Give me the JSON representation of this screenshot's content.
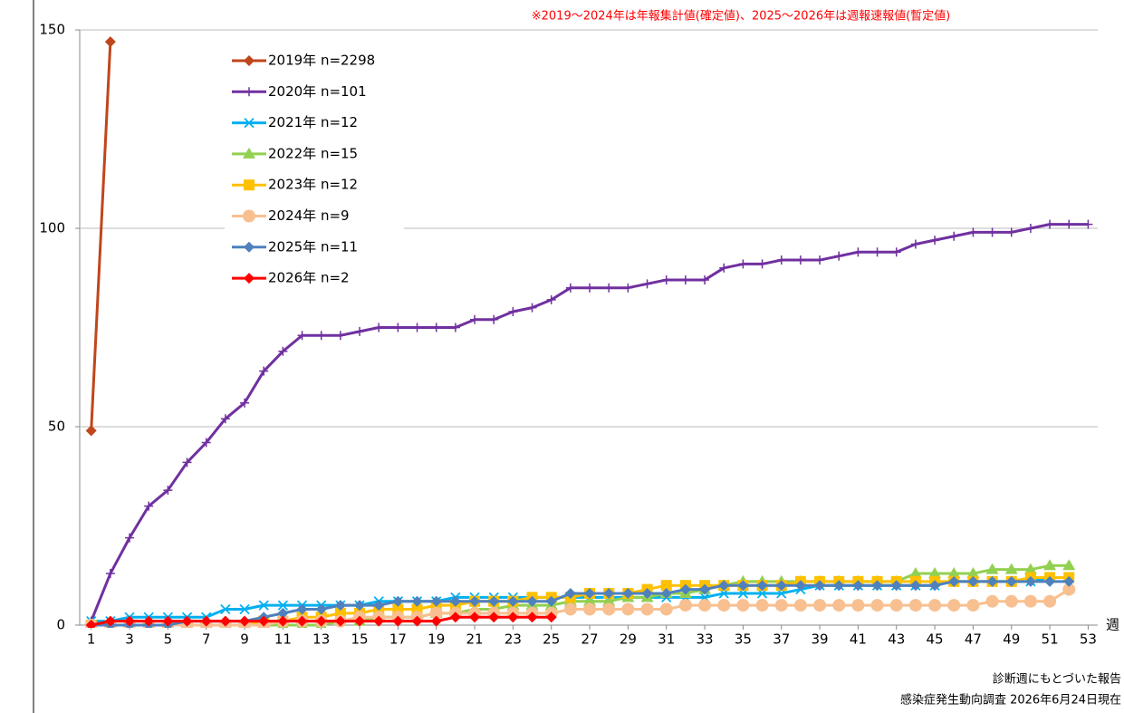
{
  "chart_data": {
    "type": "line",
    "annotation": "※2019～2024年は年報集計値(確定値)、2025～2026年は週報速報値(暫定値)",
    "x_unit": "週",
    "footer": [
      "診断週にもとづいた報告",
      "感染症発生動向調査 2026年6月24日現在"
    ],
    "x": [
      1,
      2,
      3,
      4,
      5,
      6,
      7,
      8,
      9,
      10,
      11,
      12,
      13,
      14,
      15,
      16,
      17,
      18,
      19,
      20,
      21,
      22,
      23,
      24,
      25,
      26,
      27,
      28,
      29,
      30,
      31,
      32,
      33,
      34,
      35,
      36,
      37,
      38,
      39,
      40,
      41,
      42,
      43,
      44,
      45,
      46,
      47,
      48,
      49,
      50,
      51,
      52,
      53
    ],
    "xlim": [
      0.4,
      53.5
    ],
    "xticks": [
      1,
      3,
      5,
      7,
      9,
      11,
      13,
      15,
      17,
      19,
      21,
      23,
      25,
      27,
      29,
      31,
      33,
      35,
      37,
      39,
      41,
      43,
      45,
      47,
      49,
      51,
      53
    ],
    "ylim": [
      0,
      150
    ],
    "yticks": [
      0,
      50,
      100,
      150
    ],
    "grid": true,
    "legend": "upper-left",
    "series": [
      {
        "name": "2019年 n=2298",
        "color": "#c0461c",
        "marker": "diamond",
        "values": [
          49,
          147,
          null,
          null,
          null,
          null,
          null,
          null,
          null,
          null,
          null,
          null,
          null,
          null,
          null,
          null,
          null,
          null,
          null,
          null,
          null,
          null,
          null,
          null,
          null,
          null,
          null,
          null,
          null,
          null,
          null,
          null,
          null,
          null,
          null,
          null,
          null,
          null,
          null,
          null,
          null,
          null,
          null,
          null,
          null,
          null,
          null,
          null,
          null,
          null,
          null,
          null,
          null
        ]
      },
      {
        "name": "2020年 n=101",
        "color": "#7030a0",
        "marker": "plus",
        "values": [
          1,
          13,
          22,
          30,
          34,
          41,
          46,
          52,
          56,
          64,
          69,
          73,
          73,
          73,
          74,
          75,
          75,
          75,
          75,
          75,
          77,
          77,
          79,
          80,
          82,
          85,
          85,
          85,
          85,
          86,
          87,
          87,
          87,
          90,
          91,
          91,
          92,
          92,
          92,
          93,
          94,
          94,
          94,
          96,
          97,
          98,
          99,
          99,
          99,
          100,
          101,
          101,
          101
        ]
      },
      {
        "name": "2021年 n=12",
        "color": "#00b0f0",
        "marker": "x",
        "values": [
          1,
          1,
          2,
          2,
          2,
          2,
          2,
          4,
          4,
          5,
          5,
          5,
          5,
          5,
          5,
          6,
          6,
          6,
          6,
          7,
          7,
          7,
          7,
          7,
          7,
          7,
          7,
          7,
          7,
          7,
          7,
          7,
          7,
          8,
          8,
          8,
          8,
          9,
          10,
          10,
          10,
          10,
          10,
          10,
          10,
          11,
          11,
          11,
          11,
          11,
          12,
          12,
          null
        ]
      },
      {
        "name": "2022年 n=15",
        "color": "#92d050",
        "marker": "triangle",
        "values": [
          0,
          0,
          0,
          0,
          0,
          0,
          0,
          0,
          0,
          0,
          0,
          0,
          0,
          1,
          1,
          2,
          2,
          2,
          3,
          3,
          4,
          4,
          5,
          5,
          5,
          6,
          6,
          6,
          7,
          7,
          8,
          8,
          9,
          10,
          11,
          11,
          11,
          11,
          11,
          11,
          11,
          11,
          11,
          13,
          13,
          13,
          13,
          14,
          14,
          14,
          15,
          15,
          null
        ]
      },
      {
        "name": "2023年 n=12",
        "color": "#ffc000",
        "marker": "square",
        "values": [
          0,
          0,
          0,
          0,
          0,
          0,
          0,
          0,
          0,
          1,
          1,
          2,
          2,
          3,
          3,
          4,
          4,
          4,
          5,
          5,
          6,
          6,
          6,
          7,
          7,
          7,
          8,
          8,
          8,
          9,
          10,
          10,
          10,
          10,
          10,
          10,
          10,
          11,
          11,
          11,
          11,
          11,
          11,
          11,
          11,
          11,
          11,
          11,
          11,
          12,
          12,
          12,
          null
        ]
      },
      {
        "name": "2024年 n=9",
        "color": "#f8c090",
        "marker": "circle",
        "values": [
          0,
          0,
          0,
          0,
          0,
          0,
          0,
          0,
          0,
          0,
          1,
          1,
          1,
          1,
          2,
          2,
          2,
          2,
          3,
          3,
          3,
          3,
          3,
          3,
          3,
          4,
          4,
          4,
          4,
          4,
          4,
          5,
          5,
          5,
          5,
          5,
          5,
          5,
          5,
          5,
          5,
          5,
          5,
          5,
          5,
          5,
          5,
          6,
          6,
          6,
          6,
          9,
          null
        ]
      },
      {
        "name": "2025年 n=11",
        "color": "#4f81bd",
        "marker": "diamond",
        "values": [
          0,
          0,
          0,
          0,
          0,
          1,
          1,
          1,
          1,
          2,
          3,
          4,
          4,
          5,
          5,
          5,
          6,
          6,
          6,
          6,
          6,
          6,
          6,
          6,
          6,
          8,
          8,
          8,
          8,
          8,
          8,
          9,
          9,
          10,
          10,
          10,
          10,
          10,
          10,
          10,
          10,
          10,
          10,
          10,
          10,
          11,
          11,
          11,
          11,
          11,
          11,
          11,
          null
        ]
      },
      {
        "name": "2026年 n=2",
        "color": "#ff0000",
        "marker": "diamond",
        "values": [
          0,
          1,
          1,
          1,
          1,
          1,
          1,
          1,
          1,
          1,
          1,
          1,
          1,
          1,
          1,
          1,
          1,
          1,
          1,
          2,
          2,
          2,
          2,
          2,
          2,
          null,
          null,
          null,
          null,
          null,
          null,
          null,
          null,
          null,
          null,
          null,
          null,
          null,
          null,
          null,
          null,
          null,
          null,
          null,
          null,
          null,
          null,
          null,
          null,
          null,
          null,
          null,
          null
        ]
      }
    ]
  }
}
